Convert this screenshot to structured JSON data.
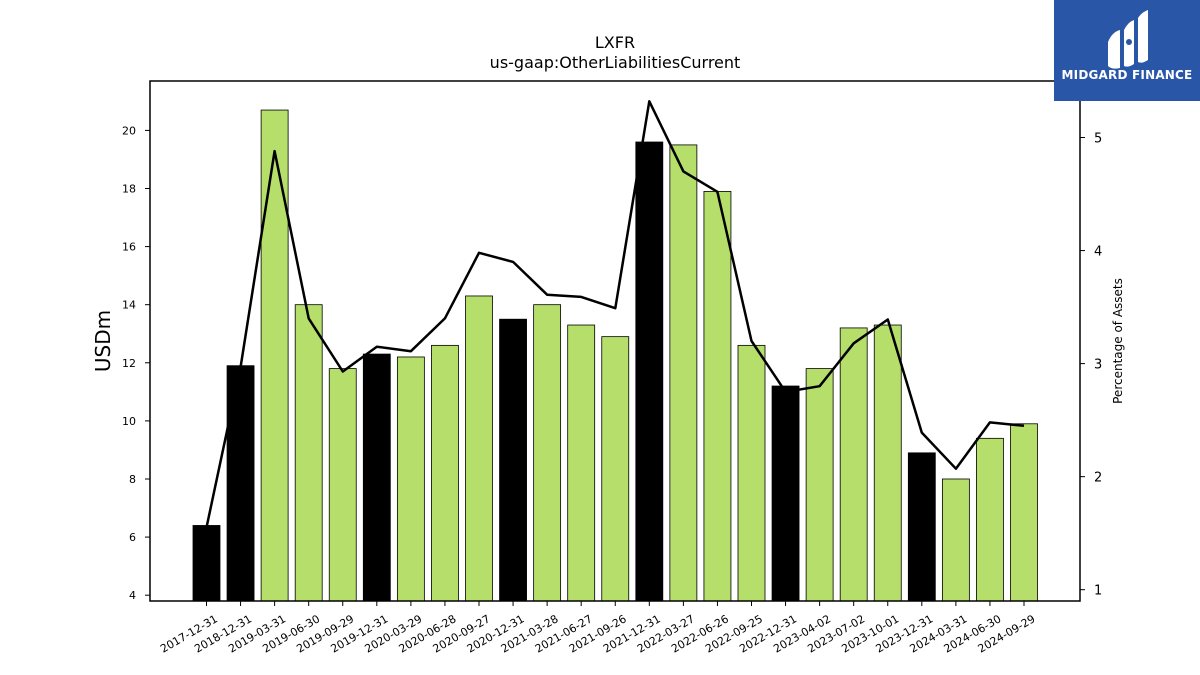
{
  "chart_data": {
    "type": "bar",
    "title": "LXFR",
    "subtitle": "us-gaap:OtherLiabilitiesCurrent",
    "ylabel": "USDm",
    "y2label": "Percentage of Assets",
    "ylim": [
      3.8,
      21.7
    ],
    "y2lim": [
      0.9,
      5.5
    ],
    "yticks": [
      4,
      6,
      8,
      10,
      12,
      14,
      16,
      18,
      20
    ],
    "y2ticks": [
      1,
      2,
      3,
      4,
      5
    ],
    "categories": [
      "2017-12-31",
      "2018-12-31",
      "2019-03-31",
      "2019-06-30",
      "2019-09-29",
      "2019-12-31",
      "2020-03-29",
      "2020-06-28",
      "2020-09-27",
      "2020-12-31",
      "2021-03-28",
      "2021-06-27",
      "2021-09-26",
      "2021-12-31",
      "2022-03-27",
      "2022-06-26",
      "2022-09-25",
      "2022-12-31",
      "2023-04-02",
      "2023-07-02",
      "2023-10-01",
      "2023-12-31",
      "2024-03-31",
      "2024-06-30",
      "2024-09-29"
    ],
    "series": [
      {
        "values": [
          6.4,
          11.9,
          20.7,
          14.0,
          11.8,
          12.3,
          12.2,
          12.6,
          14.3,
          13.5,
          14.0,
          13.3,
          12.9,
          19.6,
          19.5,
          17.9,
          12.6,
          11.2,
          11.8,
          13.2,
          13.3,
          8.9,
          8.0,
          9.4,
          9.9
        ],
        "fiscal_year_end": [
          true,
          true,
          false,
          false,
          false,
          true,
          false,
          false,
          false,
          true,
          false,
          false,
          false,
          true,
          false,
          false,
          false,
          true,
          false,
          false,
          false,
          true,
          false,
          false,
          false
        ]
      },
      {
        "axis": "right",
        "type": "line",
        "values": [
          1.55,
          2.97,
          4.88,
          3.4,
          2.93,
          3.15,
          3.11,
          3.4,
          3.98,
          3.9,
          3.61,
          3.59,
          3.49,
          5.32,
          4.7,
          4.52,
          3.2,
          2.75,
          2.8,
          3.18,
          3.39,
          2.39,
          2.07,
          2.48,
          2.45
        ]
      }
    ],
    "colors": {
      "bar_quarter": "#b5de6a",
      "bar_year": "#000000",
      "line": "#000000"
    }
  },
  "logo": {
    "text": "MIDGARD FINANCE",
    "bg": "#2a56a8"
  }
}
